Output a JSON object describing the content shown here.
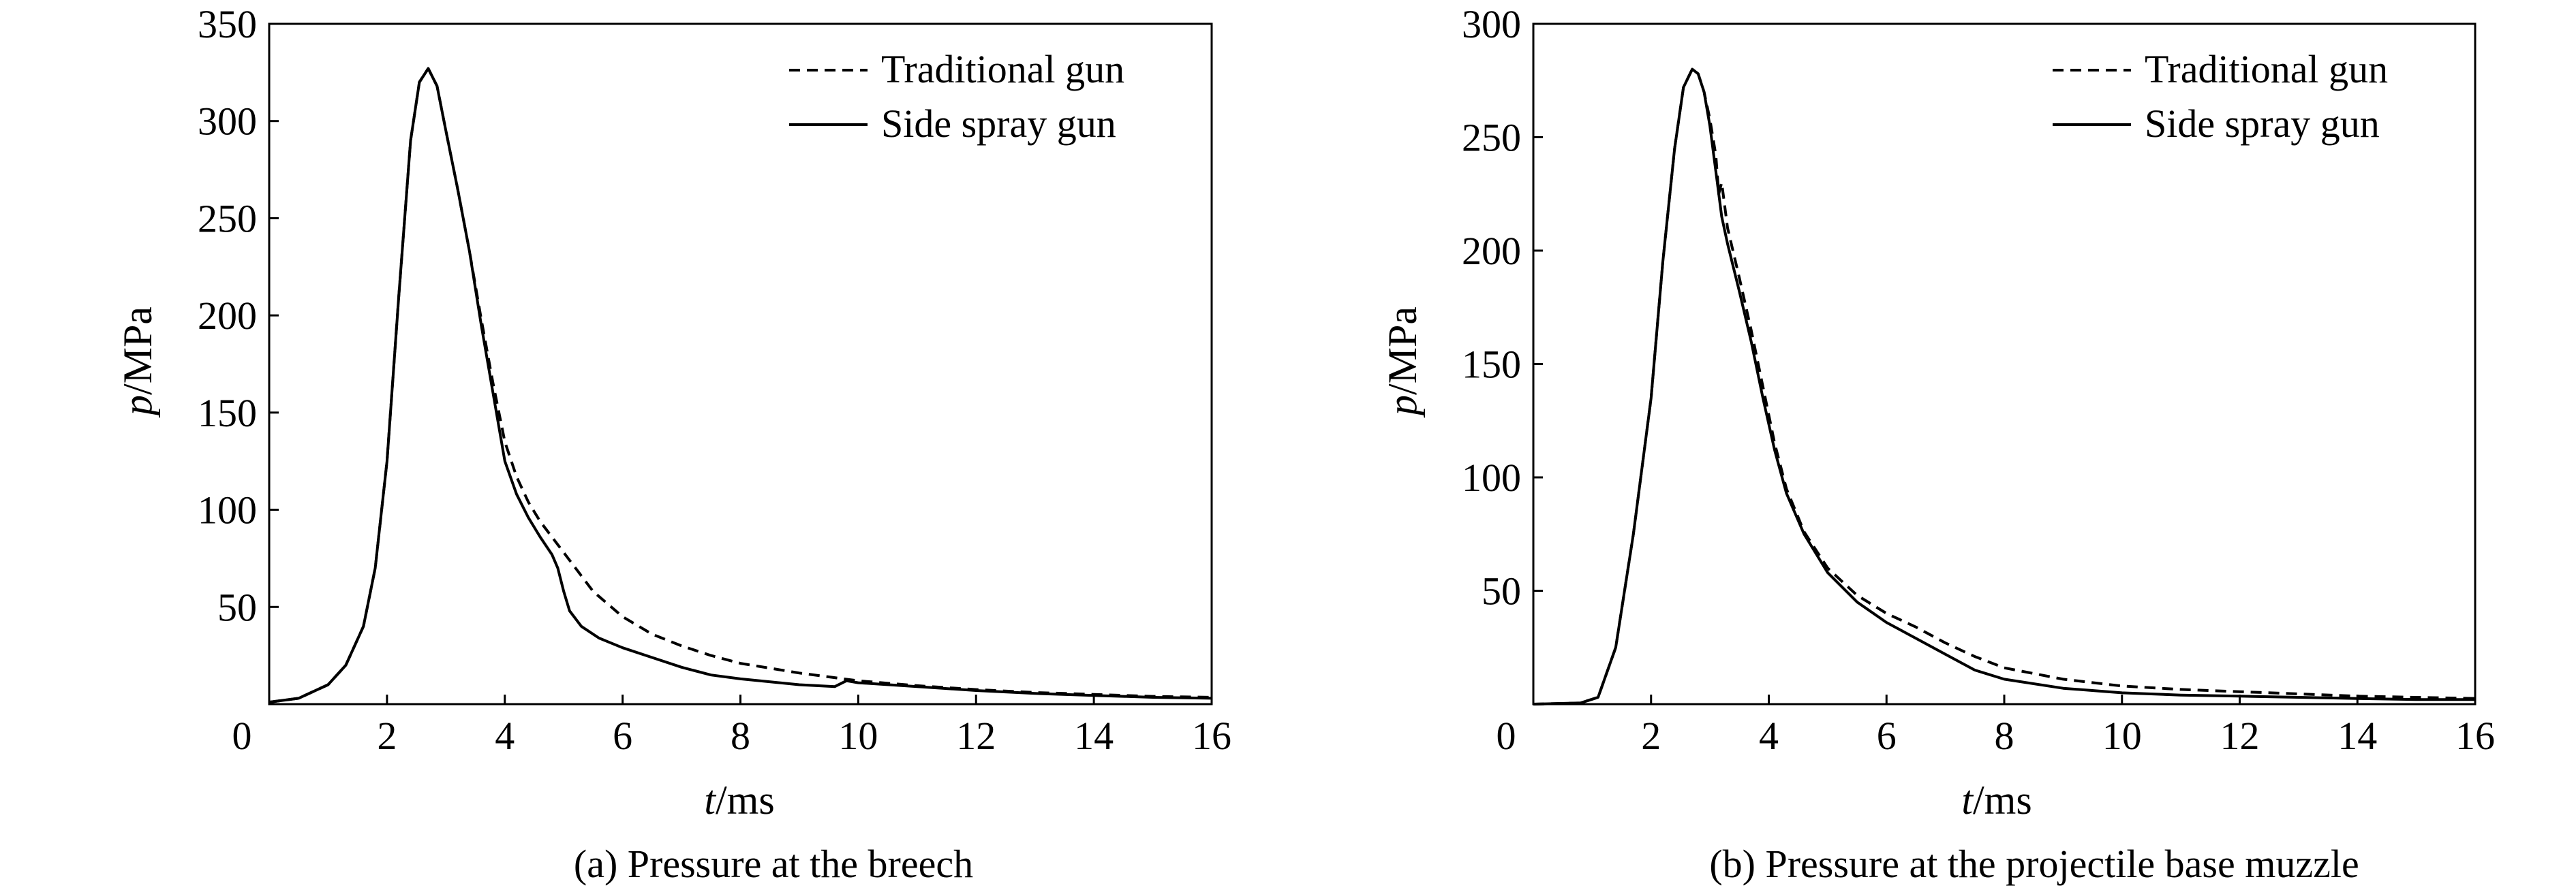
{
  "figure": {
    "panels": [
      {
        "id": "a",
        "caption": "(a) Pressure at the breech",
        "xlabel_var": "t",
        "xlabel_unit": "/ms",
        "ylabel_var": "p",
        "ylabel_unit": "/MPa"
      },
      {
        "id": "b",
        "caption": "(b) Pressure at the projectile base muzzle",
        "xlabel_var": "t",
        "xlabel_unit": "/ms",
        "ylabel_var": "p",
        "ylabel_unit": "/MPa"
      }
    ]
  },
  "chart_data": [
    {
      "type": "line",
      "title": "(a) Pressure at the breech",
      "xlabel": "t/ms",
      "ylabel": "p/MPa",
      "xlim": [
        0,
        16
      ],
      "ylim": [
        0,
        350
      ],
      "xticks": [
        0,
        2,
        4,
        6,
        8,
        10,
        12,
        14,
        16
      ],
      "yticks": [
        50,
        100,
        150,
        200,
        250,
        300,
        350
      ],
      "grid": false,
      "legend_position": "top-right",
      "series": [
        {
          "name": "Traditional gun",
          "style": "dashed",
          "color": "#000000",
          "x": [
            0,
            0.5,
            1.0,
            1.3,
            1.6,
            1.8,
            2.0,
            2.2,
            2.4,
            2.55,
            2.7,
            2.85,
            3.0,
            3.2,
            3.4,
            3.6,
            3.8,
            4.0,
            4.2,
            4.4,
            4.6,
            4.8,
            5.0,
            5.2,
            5.5,
            6.0,
            6.5,
            7.0,
            7.5,
            8.0,
            9.0,
            10.0,
            11.0,
            12.0,
            13.0,
            14.0,
            15.0,
            16.0
          ],
          "y": [
            1,
            3,
            10,
            20,
            40,
            70,
            125,
            210,
            290,
            320,
            327,
            318,
            295,
            265,
            233,
            198,
            165,
            135,
            117,
            104,
            94,
            86,
            78,
            70,
            58,
            45,
            36,
            30,
            25,
            21,
            16,
            12,
            9.5,
            7.5,
            6,
            5,
            4,
            3.5
          ]
        },
        {
          "name": "Side spray gun",
          "style": "solid",
          "color": "#000000",
          "x": [
            0,
            0.5,
            1.0,
            1.3,
            1.6,
            1.8,
            2.0,
            2.2,
            2.4,
            2.55,
            2.7,
            2.85,
            3.0,
            3.2,
            3.4,
            3.6,
            3.8,
            4.0,
            4.2,
            4.4,
            4.6,
            4.8,
            4.9,
            5.0,
            5.1,
            5.3,
            5.6,
            6.0,
            6.5,
            7.0,
            7.5,
            8.0,
            9.0,
            9.6,
            9.8,
            10.0,
            11.0,
            12.0,
            13.0,
            14.0,
            15.0,
            16.0
          ],
          "y": [
            1,
            3,
            10,
            20,
            40,
            70,
            125,
            210,
            290,
            320,
            327,
            318,
            295,
            265,
            233,
            195,
            160,
            125,
            108,
            96,
            86,
            77,
            70,
            58,
            48,
            40,
            34,
            29,
            24,
            19,
            15,
            13,
            10,
            9,
            12,
            11,
            9,
            7,
            5.5,
            4.5,
            3.5,
            3
          ]
        }
      ]
    },
    {
      "type": "line",
      "title": "(b) Pressure at the projectile base muzzle",
      "xlabel": "t/ms",
      "ylabel": "p/MPa",
      "xlim": [
        0,
        16
      ],
      "ylim": [
        0,
        300
      ],
      "xticks": [
        0,
        2,
        4,
        6,
        8,
        10,
        12,
        14,
        16
      ],
      "yticks": [
        50,
        100,
        150,
        200,
        250,
        300
      ],
      "grid": false,
      "legend_position": "top-right",
      "series": [
        {
          "name": "Traditional gun",
          "style": "dashed",
          "color": "#000000",
          "x": [
            0,
            0.8,
            1.1,
            1.4,
            1.7,
            2.0,
            2.2,
            2.4,
            2.55,
            2.7,
            2.8,
            2.9,
            3.0,
            3.1,
            3.15,
            3.2,
            3.3,
            3.5,
            3.7,
            3.9,
            4.1,
            4.3,
            4.6,
            5.0,
            5.5,
            6.0,
            6.5,
            7.0,
            7.5,
            8.0,
            9.0,
            10.0,
            11.0,
            12.0,
            13.0,
            14.0,
            15.0,
            16.0
          ],
          "y": [
            0,
            0.5,
            3,
            25,
            75,
            135,
            195,
            245,
            272,
            280,
            278,
            270,
            258,
            242,
            225,
            230,
            210,
            188,
            165,
            140,
            115,
            95,
            76,
            60,
            48,
            40,
            34,
            27,
            21,
            16,
            11,
            8,
            6.5,
            5.5,
            4.5,
            3.5,
            3,
            2.5
          ]
        },
        {
          "name": "Side spray gun",
          "style": "solid",
          "color": "#000000",
          "x": [
            0,
            0.8,
            1.1,
            1.4,
            1.7,
            2.0,
            2.2,
            2.4,
            2.55,
            2.7,
            2.8,
            2.9,
            3.0,
            3.1,
            3.2,
            3.3,
            3.5,
            3.7,
            3.9,
            4.1,
            4.3,
            4.6,
            5.0,
            5.5,
            6.0,
            6.5,
            7.0,
            7.5,
            8.0,
            9.0,
            10.0,
            11.0,
            12.0,
            13.0,
            14.0,
            15.0,
            16.0
          ],
          "y": [
            0,
            0.5,
            3,
            25,
            75,
            135,
            195,
            245,
            272,
            280,
            278,
            270,
            255,
            235,
            215,
            203,
            182,
            160,
            135,
            112,
            93,
            75,
            58,
            45,
            36,
            29,
            22,
            15,
            11,
            7,
            5,
            4,
            3.5,
            3,
            2.5,
            2,
            2
          ]
        }
      ]
    }
  ]
}
